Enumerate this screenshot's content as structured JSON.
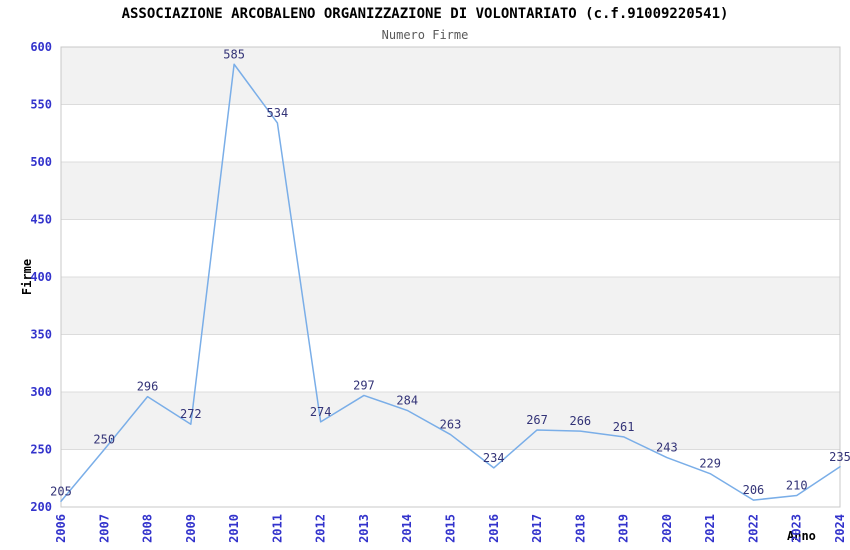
{
  "page": {
    "background": "#ffffff"
  },
  "chart_data": {
    "type": "line",
    "title": "ASSOCIAZIONE ARCOBALENO ORGANIZZAZIONE DI VOLONTARIATO (c.f.91009220541)",
    "subtitle": "Numero Firme",
    "xlabel": "Anno",
    "ylabel": "Firme",
    "categories": [
      "2006",
      "2007",
      "2008",
      "2009",
      "2010",
      "2011",
      "2012",
      "2013",
      "2014",
      "2015",
      "2016",
      "2017",
      "2018",
      "2019",
      "2020",
      "2021",
      "2022",
      "2023",
      "2024"
    ],
    "values": [
      205,
      250,
      296,
      272,
      585,
      534,
      274,
      297,
      284,
      263,
      234,
      267,
      266,
      261,
      243,
      229,
      206,
      210,
      235
    ],
    "ylim": [
      200,
      600
    ],
    "yticks": [
      200,
      250,
      300,
      350,
      400,
      450,
      500,
      550,
      600
    ],
    "grid": "horizontal-bands",
    "legend": "none",
    "data_labels_visible": true,
    "colors": {
      "line": "#7aaee8",
      "data_label": "#333377",
      "tick_label": "#3333cc",
      "band_gray": "#f2f2f2",
      "band_white": "#ffffff",
      "plot_border": "#c8c8c8",
      "gridline": "#dcdcdc",
      "title": "#000000",
      "subtitle": "#595959",
      "axis_label": "#000000"
    }
  }
}
